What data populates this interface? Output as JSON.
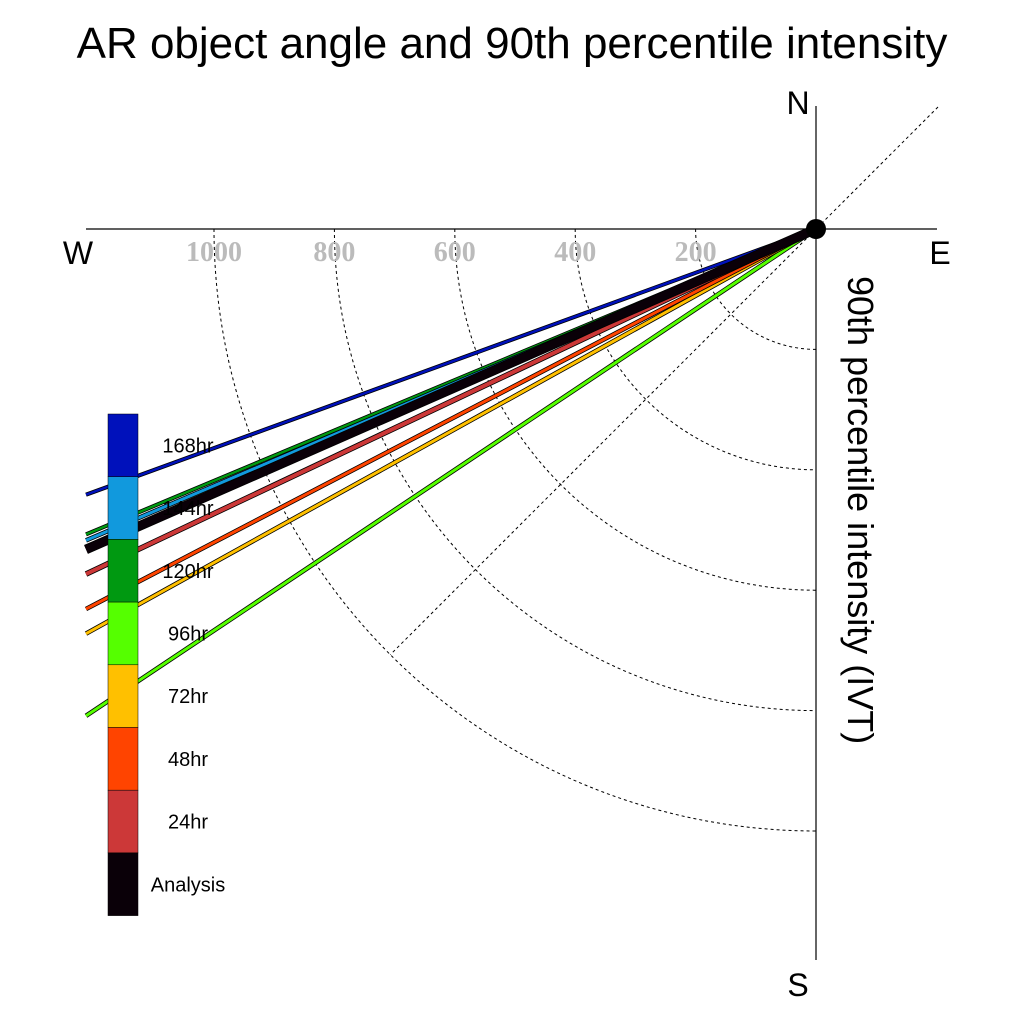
{
  "chart_data": {
    "type": "polar-line",
    "title": "AR object angle and 90th percentile intensity",
    "ylabel": "90th percentile intensity (IVT)",
    "compass": {
      "north": "N",
      "south": "S",
      "west": "W",
      "east": "E"
    },
    "radial_ticks": [
      200,
      400,
      600,
      800,
      1000
    ],
    "radial_tick_labels": [
      "200",
      "400",
      "600",
      "800",
      "1000"
    ],
    "series": [
      {
        "name": "168hr",
        "color": "#0011bb",
        "angle_deg": 200.0,
        "width": 2.5
      },
      {
        "name": "144hr",
        "color": "#1199dd",
        "angle_deg": 203.1,
        "width": 3
      },
      {
        "name": "120hr",
        "color": "#009911",
        "angle_deg": 202.7,
        "width": 2.5
      },
      {
        "name": "96hr",
        "color": "#55ff00",
        "angle_deg": 213.7,
        "width": 3
      },
      {
        "name": "72hr",
        "color": "#ffc000",
        "angle_deg": 209.0,
        "width": 3
      },
      {
        "name": "48hr",
        "color": "#ff4400",
        "angle_deg": 207.5,
        "width": 3
      },
      {
        "name": "24hr",
        "color": "#cc3838",
        "angle_deg": 205.3,
        "width": 4
      },
      {
        "name": "Analysis",
        "color": "#0a0008",
        "angle_deg": 203.7,
        "width": 8
      }
    ],
    "legend_order": [
      "168hr",
      "144hr",
      "120hr",
      "96hr",
      "72hr",
      "48hr",
      "24hr",
      "Analysis"
    ]
  }
}
